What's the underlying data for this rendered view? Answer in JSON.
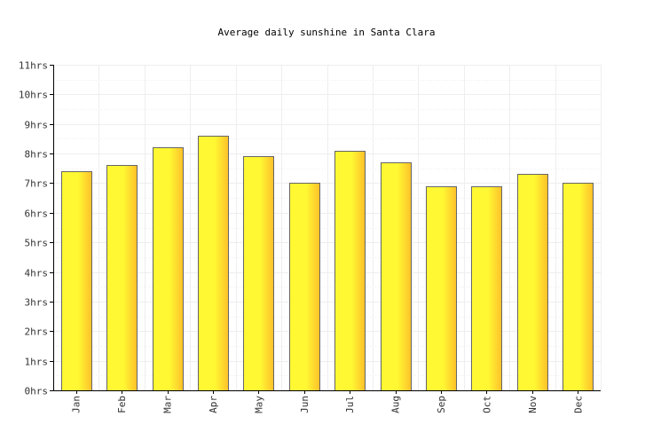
{
  "chart_data": {
    "type": "bar",
    "title": "Average daily sunshine in Santa Clara",
    "xlabel": "",
    "ylabel": "",
    "categories": [
      "Jan",
      "Feb",
      "Mar",
      "Apr",
      "May",
      "Jun",
      "Jul",
      "Aug",
      "Sep",
      "Oct",
      "Nov",
      "Dec"
    ],
    "values": [
      7.4,
      7.6,
      8.2,
      8.6,
      7.9,
      7.0,
      8.1,
      7.7,
      6.9,
      6.9,
      7.3,
      7.0
    ],
    "ylim": [
      0,
      11
    ],
    "yticks": [
      0,
      1,
      2,
      3,
      4,
      5,
      6,
      7,
      8,
      9,
      10,
      11
    ],
    "ytick_labels": [
      "0hrs",
      "1hrs",
      "2hrs",
      "3hrs",
      "4hrs",
      "5hrs",
      "6hrs",
      "7hrs",
      "8hrs",
      "9hrs",
      "10hrs",
      "11hrs"
    ],
    "grid": true,
    "legend": "none",
    "colors": {
      "bar_light": "#fff833",
      "bar_dark": "#fdc02a",
      "bar_stroke": "#666666",
      "grid": "#eeeeee",
      "axis": "#000000"
    }
  }
}
